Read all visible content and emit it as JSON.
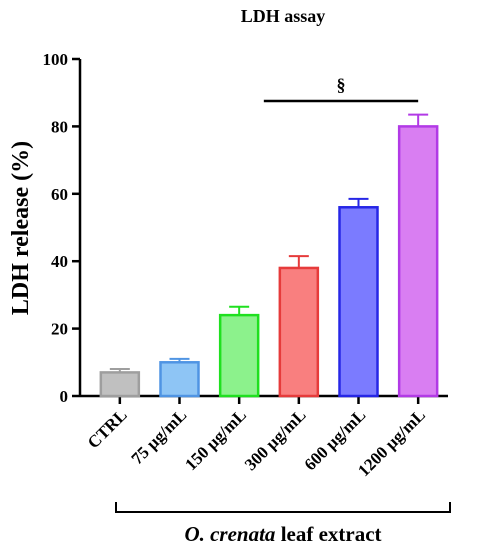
{
  "chart_data": {
    "type": "bar",
    "title": "LDH assay",
    "xlabel": "",
    "ylabel": "LDH release (%)",
    "ylim": [
      0,
      100
    ],
    "yticks": [
      0,
      20,
      40,
      60,
      80,
      100
    ],
    "grid": false,
    "categories": [
      "CTRL",
      "75 µg/mL",
      "150 µg/mL",
      "300 µg/mL",
      "600 µg/mL",
      "1200 µg/mL"
    ],
    "values": [
      7,
      10,
      24,
      38,
      56,
      80
    ],
    "errors": [
      1,
      1,
      2.5,
      3.5,
      2.5,
      3.5
    ],
    "colors": [
      "#c0c0c0",
      "#8ec5f5",
      "#8cf28c",
      "#f97f7f",
      "#7b7bff",
      "#d97ef2"
    ],
    "edge_colors": [
      "#9e9e9e",
      "#4f94e3",
      "#1fe01f",
      "#e63b3b",
      "#2626e6",
      "#b23ae6"
    ],
    "significance": {
      "symbol": "§",
      "from_category": 3,
      "to_category": 5
    },
    "group_label": {
      "italic": "O. crenata",
      "rest": " leaf extract"
    }
  }
}
